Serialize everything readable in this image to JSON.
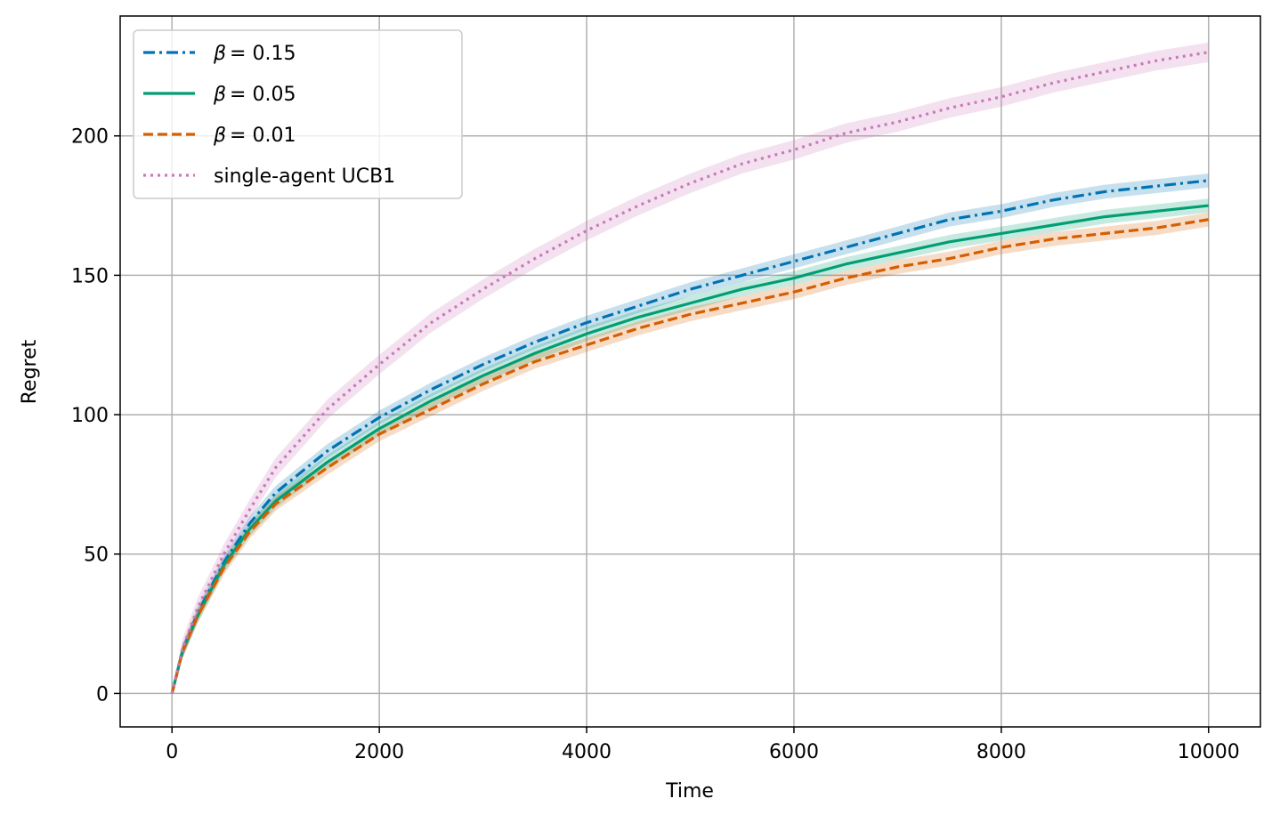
{
  "chart_data": {
    "type": "line",
    "xlabel": "Time",
    "ylabel": "Regret",
    "xlim": [
      -500,
      10500
    ],
    "ylim": [
      -12,
      243
    ],
    "xticks": [
      0,
      2000,
      4000,
      6000,
      8000,
      10000
    ],
    "xtick_labels": [
      "0",
      "2000",
      "4000",
      "6000",
      "8000",
      "10000"
    ],
    "yticks": [
      0,
      50,
      100,
      150,
      200
    ],
    "ytick_labels": [
      "0",
      "50",
      "100",
      "150",
      "200"
    ],
    "grid": true,
    "legend_position": "top-left",
    "x": [
      0,
      100,
      250,
      500,
      750,
      1000,
      1500,
      2000,
      2500,
      3000,
      3500,
      4000,
      4500,
      5000,
      5500,
      6000,
      6500,
      7000,
      7500,
      8000,
      8500,
      9000,
      9500,
      10000
    ],
    "series": [
      {
        "name": "β = 0.15",
        "legend_symbol": "β",
        "legend_value": "= 0.15",
        "color": "#0173b2",
        "dash": "dashdot",
        "band": 2.5,
        "values": [
          0,
          15,
          29,
          47,
          61,
          72,
          87,
          99,
          109,
          118,
          126,
          133,
          139,
          145,
          150,
          155,
          160,
          165,
          170,
          173,
          177,
          180,
          182,
          184
        ]
      },
      {
        "name": "β = 0.05",
        "legend_symbol": "β",
        "legend_value": "= 0.05",
        "color": "#029e73",
        "dash": "solid",
        "band": 2.5,
        "values": [
          0,
          15,
          28,
          46,
          59,
          69,
          83,
          95,
          105,
          114,
          122,
          129,
          135,
          140,
          145,
          149,
          154,
          158,
          162,
          165,
          168,
          171,
          173,
          175
        ]
      },
      {
        "name": "β = 0.01",
        "legend_symbol": "β",
        "legend_value": "= 0.01",
        "color": "#d55e00",
        "dash": "dashed",
        "band": 2.5,
        "values": [
          0,
          15,
          28,
          45,
          58,
          68,
          81,
          93,
          102,
          111,
          119,
          125,
          131,
          136,
          140,
          144,
          149,
          153,
          156,
          160,
          163,
          165,
          167,
          170
        ]
      },
      {
        "name": "single-agent UCB1",
        "legend_value": "single-agent UCB1",
        "color": "#cc78bc",
        "dash": "dotted",
        "band": 3.5,
        "values": [
          0,
          16,
          31,
          50,
          66,
          81,
          102,
          118,
          133,
          145,
          156,
          166,
          175,
          183,
          190,
          195,
          201,
          205,
          210,
          214,
          219,
          223,
          227,
          230
        ]
      }
    ]
  }
}
